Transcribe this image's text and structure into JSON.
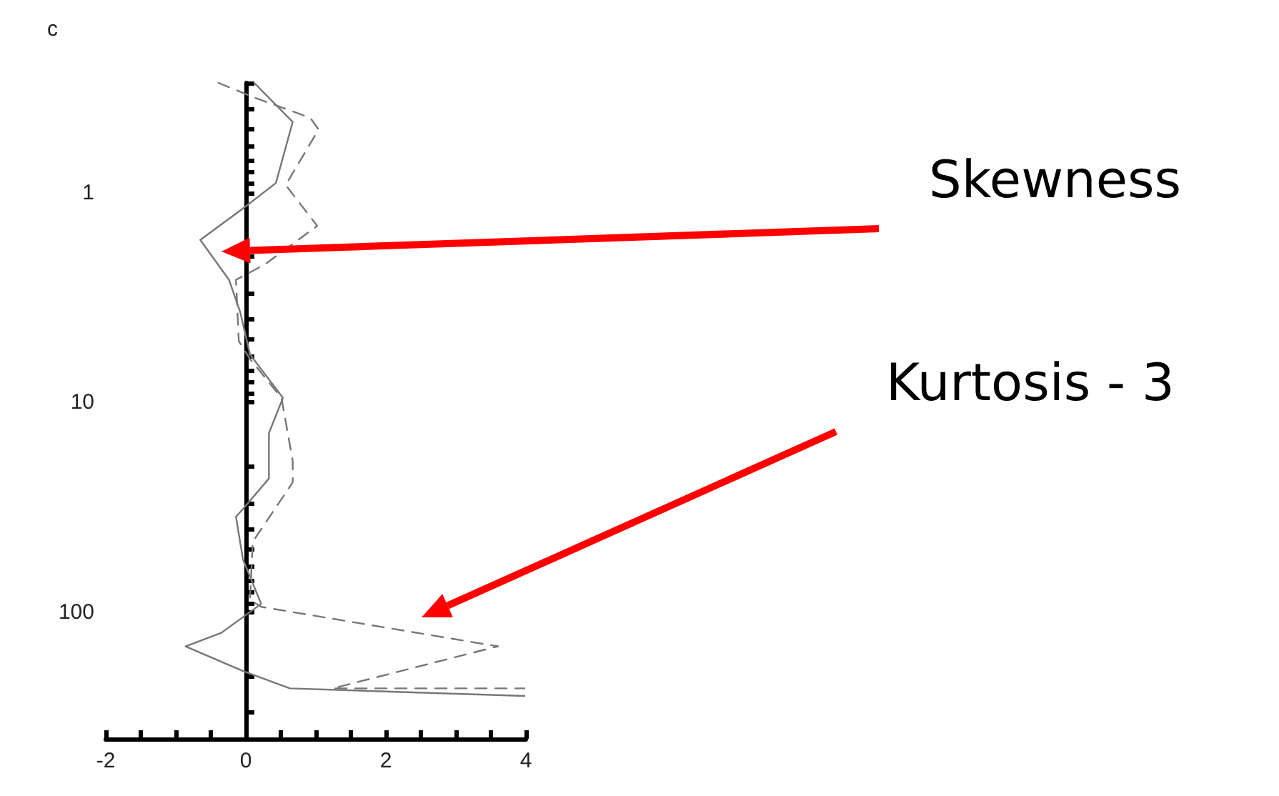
{
  "chart_data": {
    "type": "line",
    "title": "c",
    "log": "y",
    "marker": "none",
    "xlim": [
      -2,
      4
    ],
    "xticks": [
      -2,
      {
        "value": -1.5,
        "label": null
      },
      {
        "value": -1,
        "label": null
      },
      {
        "value": -0.5,
        "label": null
      },
      0,
      {
        "value": 0.5,
        "label": null
      },
      {
        "value": 1,
        "label": null
      },
      {
        "value": 1.5,
        "label": null
      },
      2,
      {
        "value": 2.5,
        "label": null
      },
      {
        "value": 3,
        "label": null
      },
      {
        "value": 3.5,
        "label": null
      },
      4
    ],
    "ylim": [
      400,
      0.3
    ],
    "yticks": [
      {
        "value": 0.3,
        "label": null
      },
      {
        "value": 0.4,
        "label": null
      },
      {
        "value": 0.5,
        "label": null
      },
      {
        "value": 0.6,
        "label": null
      },
      {
        "value": 0.7,
        "label": null
      },
      {
        "value": 0.8,
        "label": null
      },
      {
        "value": 0.9,
        "label": null
      },
      1,
      {
        "value": 2,
        "label": null
      },
      {
        "value": 3,
        "label": null
      },
      {
        "value": 4,
        "label": null
      },
      {
        "value": 5,
        "label": null
      },
      {
        "value": 6,
        "label": null
      },
      {
        "value": 7,
        "label": null
      },
      {
        "value": 8,
        "label": null
      },
      {
        "value": 9,
        "label": null
      },
      10,
      {
        "value": 20,
        "label": null
      },
      {
        "value": 30,
        "label": null
      },
      {
        "value": 40,
        "label": null
      },
      {
        "value": 50,
        "label": null
      },
      {
        "value": 60,
        "label": null
      },
      {
        "value": 70,
        "label": null
      },
      {
        "value": 80,
        "label": null
      },
      {
        "value": 90,
        "label": null
      },
      100,
      {
        "value": 200,
        "label": null
      },
      {
        "value": 300,
        "label": null
      }
    ],
    "series": [
      {
        "color": "#777777",
        "line_style": "solid",
        "x": [
          0.12,
          0.67,
          0.43,
          -0.04,
          -0.65,
          -0.24,
          -0.08,
          0.06,
          0.53,
          0.33,
          0.33,
          0,
          -0.14,
          -0.04,
          0.22,
          -0.35,
          -0.86,
          -0.04,
          0.63,
          3.98
        ],
        "values": [
          0.3,
          0.46,
          0.9,
          1.19,
          1.68,
          2.6,
          3.7,
          5.9,
          9.5,
          14,
          23,
          31,
          35,
          56,
          91,
          125,
          145,
          190,
          230,
          250
        ]
      },
      {
        "color": "#777777",
        "line_style": "dashed",
        "x": [
          -0.39,
          0.1,
          0.92,
          1.04,
          0.57,
          1.02,
          0.27,
          -0.14,
          -0.1,
          0.06,
          0.51,
          0.67,
          0.67,
          0.1,
          0.06,
          0.22,
          3.6,
          1.24,
          3.98
        ],
        "values": [
          0.3,
          0.35,
          0.44,
          0.5,
          0.92,
          1.44,
          2.2,
          2.6,
          5.1,
          6.2,
          9.5,
          19,
          24,
          46,
          87,
          94,
          145,
          230,
          230
        ]
      }
    ],
    "annotations": [
      "Skewness",
      "Kurtosis - 3"
    ]
  }
}
